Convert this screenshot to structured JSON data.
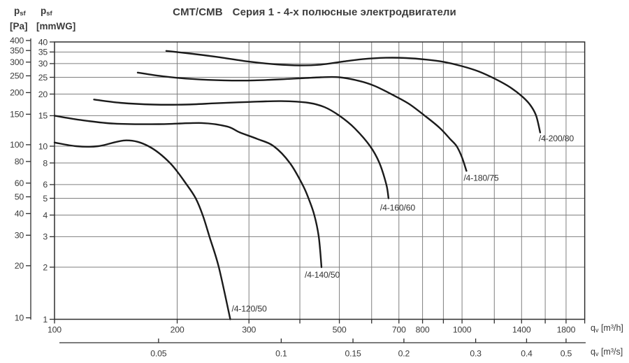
{
  "title": {
    "product": "CMT/CMB",
    "series": "Серия 1 - 4-х полюсные электродвигатели"
  },
  "headers": {
    "pa": {
      "sym": "p",
      "sub": "sf",
      "unit": "[Pa]"
    },
    "mmwg": {
      "sym": "p",
      "sub": "sf",
      "unit": "[mmWG]"
    },
    "qh": {
      "sym": "q",
      "sub": "v",
      "unit": "[m³/h]"
    },
    "qs": {
      "sym": "q",
      "sub": "v",
      "unit": "[m³/s]"
    }
  },
  "colors": {
    "curve": "#1b1b1b",
    "grid": "#7f7f7f",
    "border": "#2e2e2e",
    "text": "#3a3a3a"
  },
  "chart_data": {
    "type": "line",
    "title": "CMT/CMB Серия 1 - 4-х полюсные электродвигатели",
    "x_axis": {
      "label": "qv [m³/h]",
      "scale": "log",
      "range": [
        100,
        2000
      ],
      "gridlines": [
        200,
        300,
        400,
        500,
        600,
        700,
        800,
        900,
        1000,
        1200,
        1400,
        1600,
        1800
      ],
      "minor_ticks": [
        100,
        200,
        300,
        400,
        500,
        600,
        700,
        800,
        900,
        1000,
        1200,
        1400,
        1600,
        1800,
        2000
      ],
      "tick_labels": [
        "100",
        "200",
        "300",
        "500",
        "700",
        "800",
        "1000",
        "1400",
        "1800"
      ]
    },
    "x_axis_secondary": {
      "label": "qv [m³/s]",
      "scale": "log",
      "unit_factor_to_primary": 3600,
      "tick_labels": [
        "0.05",
        "0.1",
        "0.15",
        "0.2",
        "0.3",
        "0.4",
        "0.5"
      ]
    },
    "y_axis": {
      "label": "psf [mmWG]",
      "scale": "log",
      "range": [
        1,
        40
      ],
      "gridlines": [
        2,
        3,
        4,
        5,
        6,
        8,
        10,
        15,
        20,
        25,
        30,
        35
      ],
      "ticks": [
        40,
        35,
        30,
        25,
        20,
        15,
        10,
        8,
        6,
        5,
        4,
        3,
        2,
        1
      ]
    },
    "y_axis_secondary": {
      "label": "psf [Pa]",
      "scale": "log",
      "unit_factor_to_primary": 0.10197,
      "ticks": [
        400,
        350,
        300,
        250,
        200,
        150,
        100,
        80,
        60,
        50,
        40,
        30,
        20,
        10
      ]
    },
    "legend_position": "labels-at-curve-ends",
    "grid": true,
    "series": [
      {
        "name": "/4-120/50",
        "label_offset": [
          2,
          -11
        ],
        "points": [
          [
            100,
            10.5
          ],
          [
            113,
            10.0
          ],
          [
            128,
            10.0
          ],
          [
            150,
            10.8
          ],
          [
            170,
            10.0
          ],
          [
            192,
            8.0
          ],
          [
            211,
            6.0
          ],
          [
            222,
            5.0
          ],
          [
            231,
            4.0
          ],
          [
            240,
            3.0
          ],
          [
            253,
            2.0
          ],
          [
            270,
            1.0
          ]
        ]
      },
      {
        "name": "/4-140/50",
        "label_offset": [
          -24,
          15
        ],
        "points": [
          [
            100,
            15.0
          ],
          [
            115,
            14.2
          ],
          [
            140,
            13.5
          ],
          [
            180,
            13.4
          ],
          [
            230,
            13.6
          ],
          [
            265,
            13.0
          ],
          [
            285,
            12.0
          ],
          [
            315,
            11.0
          ],
          [
            345,
            10.0
          ],
          [
            378,
            8.0
          ],
          [
            406,
            6.0
          ],
          [
            420,
            5.0
          ],
          [
            434,
            4.0
          ],
          [
            445,
            3.0
          ],
          [
            452,
            2.0
          ]
        ]
      },
      {
        "name": "/4-160/60",
        "label_offset": [
          -12,
          17.5
        ],
        "points": [
          [
            125,
            18.6
          ],
          [
            145,
            17.8
          ],
          [
            175,
            17.4
          ],
          [
            210,
            17.4
          ],
          [
            250,
            17.7
          ],
          [
            300,
            18.0
          ],
          [
            360,
            18.2
          ],
          [
            420,
            17.8
          ],
          [
            460,
            16.8
          ],
          [
            500,
            15.0
          ],
          [
            545,
            12.7
          ],
          [
            595,
            10.0
          ],
          [
            627,
            8.0
          ],
          [
            652,
            6.0
          ],
          [
            660,
            5.0
          ]
        ]
      },
      {
        "name": "/4-180/75",
        "label_offset": [
          -4,
          14
        ],
        "points": [
          [
            160,
            26.6
          ],
          [
            185,
            25.3
          ],
          [
            220,
            24.4
          ],
          [
            260,
            24.0
          ],
          [
            310,
            24.0
          ],
          [
            380,
            24.5
          ],
          [
            450,
            25.0
          ],
          [
            500,
            25.0
          ],
          [
            560,
            23.8
          ],
          [
            610,
            22.3
          ],
          [
            670,
            20.0
          ],
          [
            740,
            17.6
          ],
          [
            810,
            15.0
          ],
          [
            880,
            12.8
          ],
          [
            935,
            11.0
          ],
          [
            970,
            10.0
          ],
          [
            1000,
            8.6
          ],
          [
            1025,
            7.2
          ]
        ]
      },
      {
        "name": "/4-200/80",
        "label_offset": [
          -2,
          12.5
        ],
        "points": [
          [
            188,
            35.5
          ],
          [
            215,
            34.3
          ],
          [
            250,
            32.8
          ],
          [
            300,
            30.8
          ],
          [
            350,
            29.7
          ],
          [
            400,
            29.3
          ],
          [
            450,
            29.6
          ],
          [
            510,
            30.8
          ],
          [
            570,
            31.8
          ],
          [
            650,
            32.4
          ],
          [
            730,
            32.3
          ],
          [
            820,
            31.6
          ],
          [
            900,
            30.7
          ],
          [
            1000,
            29.0
          ],
          [
            1100,
            27.0
          ],
          [
            1200,
            24.6
          ],
          [
            1300,
            22.2
          ],
          [
            1400,
            19.5
          ],
          [
            1470,
            17.3
          ],
          [
            1520,
            15.0
          ],
          [
            1555,
            12.0
          ]
        ]
      }
    ]
  }
}
